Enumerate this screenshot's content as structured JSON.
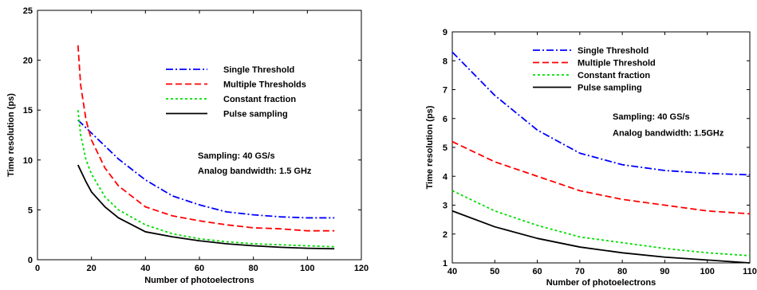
{
  "chart_data": [
    {
      "type": "line",
      "xlabel": "Number of photoelectrons",
      "ylabel": "Time resolution (ps)",
      "xlim": [
        0,
        120
      ],
      "ylim": [
        0,
        25
      ],
      "xticks": [
        0,
        20,
        40,
        60,
        80,
        100,
        120
      ],
      "yticks": [
        0,
        5,
        10,
        15,
        20,
        25
      ],
      "legend_position": "upper-right",
      "annotations": [
        "Sampling: 40 GS/s",
        "Analog bandwidth: 1.5 GHz"
      ],
      "series": [
        {
          "name": "Single Threshold",
          "color": "#0000ff",
          "dash": "dashdot",
          "x": [
            15,
            20,
            30,
            40,
            50,
            60,
            70,
            80,
            90,
            100,
            110
          ],
          "y": [
            14.0,
            12.7,
            10.1,
            8.0,
            6.4,
            5.5,
            4.8,
            4.5,
            4.3,
            4.2,
            4.2
          ]
        },
        {
          "name": "Multiple Thresholds",
          "color": "#ff0000",
          "dash": "dashed",
          "x": [
            15,
            16,
            18,
            20,
            25,
            30,
            40,
            50,
            60,
            70,
            80,
            90,
            100,
            110
          ],
          "y": [
            21.5,
            17.5,
            14.0,
            12.0,
            9.2,
            7.4,
            5.3,
            4.4,
            3.9,
            3.5,
            3.2,
            3.1,
            2.9,
            2.9
          ]
        },
        {
          "name": "Constant fraction",
          "color": "#00dd00",
          "dash": "dotted",
          "x": [
            15,
            16,
            18,
            20,
            25,
            30,
            40,
            50,
            60,
            70,
            80,
            90,
            100,
            110
          ],
          "y": [
            15.0,
            12.5,
            10.0,
            8.6,
            6.3,
            5.0,
            3.5,
            2.6,
            2.1,
            1.8,
            1.6,
            1.5,
            1.4,
            1.3
          ]
        },
        {
          "name": "Pulse sampling",
          "color": "#000000",
          "dash": "solid",
          "x": [
            15,
            18,
            20,
            25,
            30,
            40,
            50,
            60,
            70,
            80,
            90,
            100,
            110
          ],
          "y": [
            9.5,
            7.8,
            6.8,
            5.3,
            4.2,
            2.8,
            2.3,
            1.9,
            1.6,
            1.4,
            1.25,
            1.15,
            1.1
          ]
        }
      ]
    },
    {
      "type": "line",
      "xlabel": "Number of photoelectrons",
      "ylabel": "Time resolution (ps)",
      "xlim": [
        40,
        110
      ],
      "ylim": [
        1,
        9
      ],
      "xticks": [
        40,
        50,
        60,
        70,
        80,
        90,
        100,
        110
      ],
      "yticks": [
        1,
        2,
        3,
        4,
        5,
        6,
        7,
        8,
        9
      ],
      "legend_position": "upper-right",
      "annotations": [
        "Sampling: 40 GS/s",
        "Analog bandwidth: 1.5GHz"
      ],
      "series": [
        {
          "name": "Single Threshold",
          "color": "#0000ff",
          "dash": "dashdot",
          "x": [
            40,
            50,
            60,
            70,
            80,
            90,
            100,
            110
          ],
          "y": [
            8.3,
            6.8,
            5.6,
            4.8,
            4.4,
            4.2,
            4.1,
            4.05
          ]
        },
        {
          "name": "Multiple Threshold",
          "color": "#ff0000",
          "dash": "dashed",
          "x": [
            40,
            50,
            60,
            70,
            80,
            90,
            100,
            110
          ],
          "y": [
            5.2,
            4.5,
            4.0,
            3.5,
            3.2,
            3.0,
            2.8,
            2.7
          ]
        },
        {
          "name": "Constant fraction",
          "color": "#00dd00",
          "dash": "dotted",
          "x": [
            40,
            50,
            60,
            70,
            80,
            90,
            100,
            110
          ],
          "y": [
            3.5,
            2.8,
            2.3,
            1.9,
            1.7,
            1.5,
            1.35,
            1.25
          ]
        },
        {
          "name": "Pulse sampling",
          "color": "#000000",
          "dash": "solid",
          "x": [
            40,
            50,
            60,
            70,
            80,
            90,
            100,
            110
          ],
          "y": [
            2.8,
            2.25,
            1.85,
            1.55,
            1.35,
            1.2,
            1.1,
            1.0
          ]
        }
      ]
    }
  ]
}
